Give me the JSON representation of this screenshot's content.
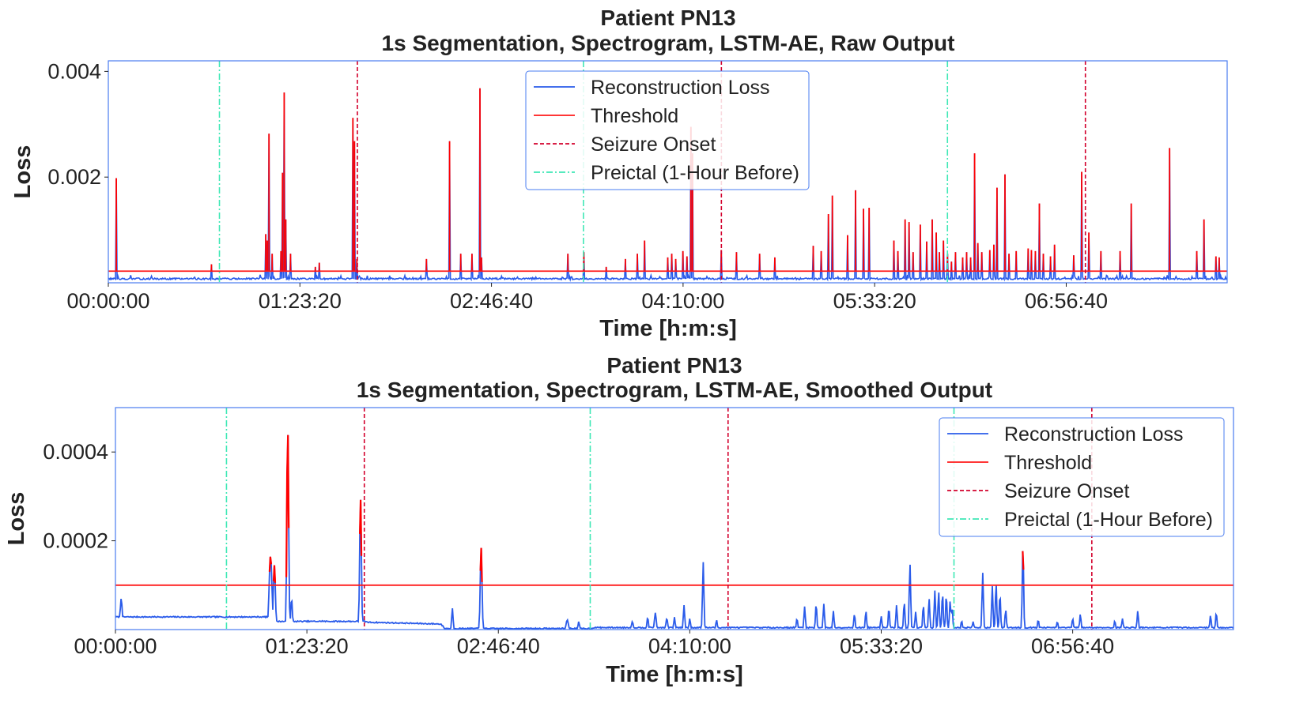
{
  "colors": {
    "loss": "#2a5bea",
    "above": "#ff0000",
    "threshold": "#ff1a1a",
    "onset": "#d3002c",
    "preictal": "#3ee8b5",
    "frame": "#4a7cf0"
  },
  "chart_data": [
    {
      "type": "line",
      "title_line1": "Patient PN13",
      "title_line2": "1s Segmentation, Spectrogram, LSTM-AE, Raw Output",
      "xlabel": "Time [h:m:s]",
      "ylabel": "Loss",
      "xlim": [
        0,
        29200
      ],
      "ylim": [
        0,
        0.0042
      ],
      "x_ticks": [
        0,
        5000,
        10000,
        15000,
        20000,
        25000
      ],
      "x_tick_labels": [
        "00:00:00",
        "01:23:20",
        "02:46:40",
        "04:10:00",
        "05:33:20",
        "06:56:40"
      ],
      "y_ticks": [
        0.002,
        0.004
      ],
      "y_tick_labels": [
        "0.002",
        "0.004"
      ],
      "threshold": 0.00022,
      "seizure_onsets": [
        6500,
        16000,
        25500
      ],
      "preictal_starts": [
        2900,
        12400,
        21900
      ],
      "baseline": 7e-05,
      "noise": 3e-05,
      "seed": 13,
      "spikes": [
        [
          200,
          0.00198
        ],
        [
          2700,
          0.00035
        ],
        [
          4100,
          0.00092
        ],
        [
          4150,
          0.0008
        ],
        [
          4200,
          0.00282
        ],
        [
          4280,
          0.00055
        ],
        [
          4500,
          0.0006
        ],
        [
          4550,
          0.00208
        ],
        [
          4580,
          0.0036
        ],
        [
          4620,
          0.0012
        ],
        [
          4750,
          0.00055
        ],
        [
          5400,
          0.0003
        ],
        [
          5500,
          0.00038
        ],
        [
          6380,
          0.00312
        ],
        [
          6420,
          0.00268
        ],
        [
          6480,
          0.00045
        ],
        [
          8300,
          0.00045
        ],
        [
          8900,
          0.00268
        ],
        [
          9200,
          0.00055
        ],
        [
          9500,
          0.00055
        ],
        [
          9700,
          0.00368
        ],
        [
          9750,
          0.00048
        ],
        [
          12000,
          0.00055
        ],
        [
          12400,
          0.00058
        ],
        [
          13000,
          0.0003
        ],
        [
          13500,
          0.00045
        ],
        [
          13800,
          0.00055
        ],
        [
          14000,
          0.0008
        ],
        [
          14600,
          0.00048
        ],
        [
          14700,
          0.00055
        ],
        [
          14800,
          0.00045
        ],
        [
          15000,
          0.0006
        ],
        [
          15100,
          0.0005
        ],
        [
          15200,
          0.00295
        ],
        [
          15250,
          0.00245
        ],
        [
          16000,
          0.00062
        ],
        [
          18400,
          0.0007
        ],
        [
          18600,
          0.0006
        ],
        [
          18800,
          0.0013
        ],
        [
          18900,
          0.00165
        ],
        [
          19300,
          0.0009
        ],
        [
          19500,
          0.00175
        ],
        [
          19700,
          0.0014
        ],
        [
          19850,
          0.00142
        ],
        [
          20500,
          0.0008
        ],
        [
          20600,
          0.0006
        ],
        [
          20800,
          0.0012
        ],
        [
          20900,
          0.00115
        ],
        [
          21000,
          0.00058
        ],
        [
          21200,
          0.0011
        ],
        [
          21350,
          0.00078
        ],
        [
          21500,
          0.0012
        ],
        [
          21600,
          0.00095
        ],
        [
          21700,
          0.00058
        ],
        [
          21800,
          0.0008
        ],
        [
          21900,
          0.00055
        ],
        [
          22000,
          0.0004
        ],
        [
          22100,
          0.00058
        ],
        [
          22300,
          0.00048
        ],
        [
          22400,
          0.00058
        ],
        [
          22500,
          0.00048
        ],
        [
          22600,
          0.00245
        ],
        [
          22700,
          0.00075
        ],
        [
          22800,
          0.00058
        ],
        [
          23000,
          0.00062
        ],
        [
          23100,
          0.00072
        ],
        [
          23200,
          0.0018
        ],
        [
          23400,
          0.00205
        ],
        [
          23500,
          0.00055
        ],
        [
          23700,
          0.0006
        ],
        [
          24000,
          0.00065
        ],
        [
          24100,
          0.00062
        ],
        [
          24200,
          0.0006
        ],
        [
          24300,
          0.0015
        ],
        [
          24400,
          0.00055
        ],
        [
          24600,
          0.0005
        ],
        [
          24700,
          0.00072
        ],
        [
          25200,
          0.00052
        ],
        [
          25400,
          0.0021
        ],
        [
          25600,
          0.00095
        ],
        [
          25900,
          0.0006
        ],
        [
          26400,
          0.0006
        ],
        [
          26700,
          0.0015
        ],
        [
          27700,
          0.00255
        ],
        [
          28400,
          0.0006
        ],
        [
          28600,
          0.0012
        ],
        [
          28900,
          0.0005
        ],
        [
          29000,
          0.00048
        ],
        [
          16400,
          0.00058
        ],
        [
          17000,
          0.00055
        ],
        [
          17400,
          0.00048
        ]
      ]
    },
    {
      "type": "line",
      "title_line1": "Patient PN13",
      "title_line2": "1s Segmentation, Spectrogram, LSTM-AE, Smoothed Output",
      "xlabel": "Time [h:m:s]",
      "ylabel": "Loss",
      "xlim": [
        0,
        29200
      ],
      "ylim": [
        0,
        0.0005
      ],
      "x_ticks": [
        0,
        5000,
        10000,
        15000,
        20000,
        25000
      ],
      "x_tick_labels": [
        "00:00:00",
        "01:23:20",
        "02:46:40",
        "04:10:00",
        "05:33:20",
        "06:56:40"
      ],
      "y_ticks": [
        0.0002,
        0.0004
      ],
      "y_tick_labels": [
        "0.0002",
        "0.0004"
      ],
      "threshold": 0.0001,
      "seizure_onsets": [
        6500,
        16000,
        25500
      ],
      "preictal_starts": [
        2900,
        12400,
        21900
      ],
      "baseline_segments": [
        [
          0,
          2.8e-05
        ],
        [
          4000,
          2.8e-05
        ],
        [
          4050,
          1.8e-05
        ],
        [
          6500,
          1.8e-05
        ],
        [
          6600,
          1.6e-05
        ],
        [
          8500,
          1.2e-05
        ],
        [
          8600,
          2e-06
        ],
        [
          12400,
          2e-06
        ],
        [
          12500,
          4e-06
        ],
        [
          29200,
          4e-06
        ]
      ],
      "noise": 2.5e-06,
      "seed": 7,
      "spikes": [
        [
          150,
          7e-05,
          60
        ],
        [
          4050,
          0.000165,
          80
        ],
        [
          4150,
          0.000145,
          60
        ],
        [
          4500,
          0.00045,
          50
        ],
        [
          4600,
          7e-05,
          50
        ],
        [
          5400,
          2e-05,
          100
        ],
        [
          6400,
          0.000295,
          50
        ],
        [
          8800,
          4.8e-05,
          40
        ],
        [
          9550,
          0.000185,
          50
        ],
        [
          11800,
          2.2e-05,
          60
        ],
        [
          12100,
          1.8e-05,
          40
        ],
        [
          13500,
          1.8e-05,
          50
        ],
        [
          13900,
          2.8e-05,
          40
        ],
        [
          14100,
          3.8e-05,
          50
        ],
        [
          14400,
          2.5e-05,
          50
        ],
        [
          14600,
          2.8e-05,
          40
        ],
        [
          14850,
          5.5e-05,
          40
        ],
        [
          15000,
          2.5e-05,
          40
        ],
        [
          15350,
          0.000152,
          40
        ],
        [
          15700,
          2.2e-05,
          40
        ],
        [
          17800,
          2.5e-05,
          40
        ],
        [
          18000,
          5.2e-05,
          40
        ],
        [
          18300,
          5.8e-05,
          40
        ],
        [
          18500,
          5.8e-05,
          40
        ],
        [
          18750,
          4.2e-05,
          40
        ],
        [
          19300,
          3.5e-05,
          40
        ],
        [
          19600,
          4.2e-05,
          40
        ],
        [
          20000,
          3e-05,
          40
        ],
        [
          20200,
          4.8e-05,
          40
        ],
        [
          20400,
          5.5e-05,
          40
        ],
        [
          20600,
          6.2e-05,
          40
        ],
        [
          20750,
          0.000148,
          40
        ],
        [
          20900,
          4e-05,
          40
        ],
        [
          21100,
          5.5e-05,
          40
        ],
        [
          21250,
          7e-05,
          40
        ],
        [
          21400,
          8.8e-05,
          40
        ],
        [
          21500,
          8.5e-05,
          40
        ],
        [
          21600,
          8.2e-05,
          40
        ],
        [
          21700,
          7.8e-05,
          40
        ],
        [
          21800,
          6.5e-05,
          40
        ],
        [
          21850,
          5e-05,
          40
        ],
        [
          22100,
          2e-05,
          40
        ],
        [
          22400,
          1.8e-05,
          40
        ],
        [
          22650,
          0.000128,
          40
        ],
        [
          22900,
          9.8e-05,
          40
        ],
        [
          23000,
          0.000105,
          40
        ],
        [
          23100,
          8e-05,
          40
        ],
        [
          23250,
          4.5e-05,
          40
        ],
        [
          23700,
          0.000188,
          40
        ],
        [
          24100,
          2.2e-05,
          40
        ],
        [
          24600,
          1.8e-05,
          40
        ],
        [
          25000,
          2.5e-05,
          40
        ],
        [
          25200,
          3.5e-05,
          40
        ],
        [
          26100,
          2e-05,
          40
        ],
        [
          26300,
          2.5e-05,
          40
        ],
        [
          26700,
          4.2e-05,
          40
        ],
        [
          28600,
          3.2e-05,
          40
        ],
        [
          28750,
          3.8e-05,
          40
        ]
      ]
    }
  ],
  "legend": {
    "items": [
      {
        "label": "Reconstruction Loss",
        "style": "loss"
      },
      {
        "label": "Threshold",
        "style": "threshold"
      },
      {
        "label": "Seizure Onset",
        "style": "onset"
      },
      {
        "label": "Preictal (1-Hour Before)",
        "style": "preictal"
      }
    ],
    "placement_top": "upper center",
    "placement_bottom": "upper right"
  }
}
